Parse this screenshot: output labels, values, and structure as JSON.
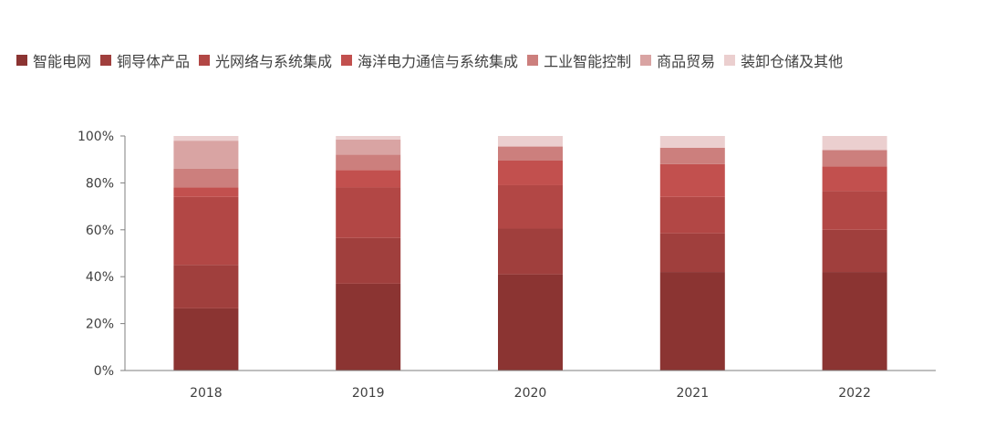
{
  "chart_data": {
    "type": "bar",
    "stacked": true,
    "categories": [
      "2018",
      "2019",
      "2020",
      "2021",
      "2022"
    ],
    "ylim": [
      0,
      100
    ],
    "yticks": [
      "0%",
      "20%",
      "40%",
      "60%",
      "80%",
      "100%"
    ],
    "legend_position": "top",
    "grid": false,
    "series": [
      {
        "name": "智能电网",
        "color": "#8B3432",
        "values": [
          26.5,
          37,
          41,
          42,
          42
        ]
      },
      {
        "name": "铜导体产品",
        "color": "#A03F3D",
        "values": [
          18.5,
          19.5,
          19.5,
          16.5,
          18
        ]
      },
      {
        "name": "光网络与系统集成",
        "color": "#B24745",
        "values": [
          29,
          21.5,
          18.5,
          15.5,
          16.5
        ]
      },
      {
        "name": "海洋电力通信与系统集成",
        "color": "#C2504E",
        "values": [
          4,
          7.5,
          10.5,
          14,
          10.5
        ]
      },
      {
        "name": "工业智能控制",
        "color": "#CC7F7D",
        "values": [
          8,
          6.5,
          6,
          7,
          7
        ]
      },
      {
        "name": "商品贸易",
        "color": "#D9A4A3",
        "values": [
          12,
          6.5,
          0,
          0,
          0
        ]
      },
      {
        "name": "装卸仓储及其他",
        "color": "#EBCFCF",
        "values": [
          2,
          1.5,
          4.5,
          5,
          6
        ]
      }
    ]
  }
}
